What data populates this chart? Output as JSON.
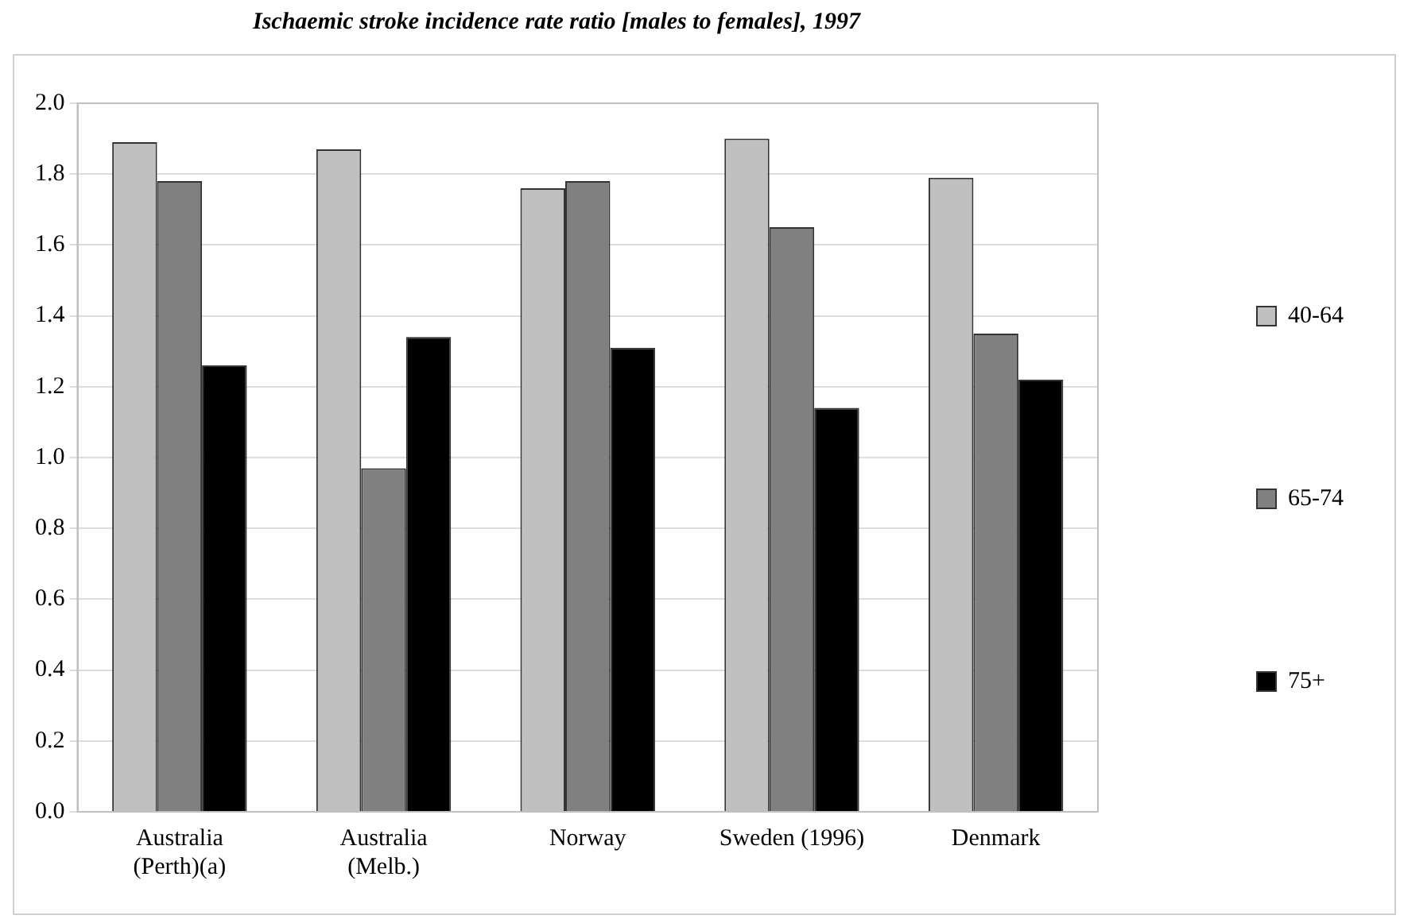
{
  "chart_data": {
    "type": "bar",
    "title": "Ischaemic stroke incidence rate ratio [males to females], 1997",
    "categories": [
      "Australia\n(Perth)(a)",
      "Australia\n(Melb.)",
      "Norway",
      "Sweden (1996)",
      "Denmark"
    ],
    "series": [
      {
        "name": "40-64",
        "color": "#c0c0c0",
        "values": [
          1.89,
          1.87,
          1.76,
          1.9,
          1.79
        ]
      },
      {
        "name": "65-74",
        "color": "#808080",
        "values": [
          1.78,
          0.97,
          1.78,
          1.65,
          1.35
        ]
      },
      {
        "name": "75+",
        "color": "#000000",
        "values": [
          1.26,
          1.34,
          1.31,
          1.14,
          1.22
        ]
      }
    ],
    "ylim": [
      0,
      2
    ],
    "yticks": [
      {
        "value": 0,
        "label": "0.0"
      },
      0.2,
      0.4,
      0.6,
      0.8,
      {
        "value": 1,
        "label": "1.0"
      },
      1.2,
      1.4,
      1.6,
      1.8,
      {
        "value": 2,
        "label": "2.0"
      }
    ],
    "grid": "y",
    "legend": "right"
  }
}
